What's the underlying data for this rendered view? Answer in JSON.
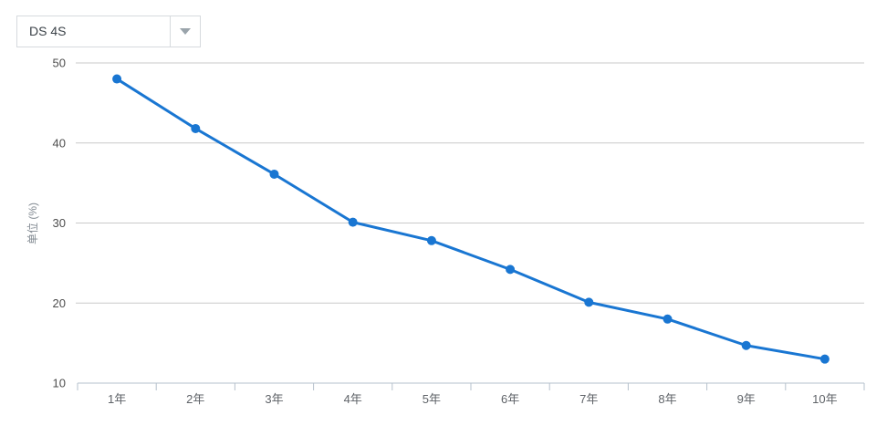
{
  "dropdown": {
    "value": "DS 4S"
  },
  "chart_data": {
    "type": "line",
    "categories": [
      "1年",
      "2年",
      "3年",
      "4年",
      "5年",
      "6年",
      "7年",
      "8年",
      "9年",
      "10年"
    ],
    "values": [
      48,
      41.8,
      36.1,
      30.1,
      27.8,
      24.2,
      20.1,
      18,
      14.7,
      13
    ],
    "title": "",
    "xlabel": "",
    "ylabel": "单位 (%)",
    "ylim": [
      10,
      50
    ],
    "yticks": [
      10,
      20,
      30,
      40,
      50
    ],
    "grid": true,
    "legend_position": "none",
    "line_color": "#1976d2",
    "grid_color": "#c9c9c9",
    "axis_color": "#b6c1cc",
    "y_tick_label_color": "#4d4d4d",
    "x_tick_label_color": "#5f6368",
    "ylabel_color": "#828a92"
  }
}
